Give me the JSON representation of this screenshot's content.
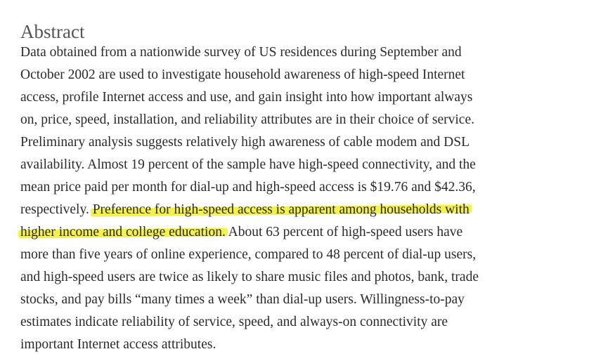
{
  "heading": "Abstract",
  "abstract_lines": [
    "Data obtained from a nationwide survey of US residences during September and",
    "October 2002 are used to investigate household awareness of high-speed Internet",
    "access, profile Internet access and use, and gain insight into how important always",
    "on, price, speed, installation, and reliability attributes are in their choice of service.",
    "Preliminary analysis suggests relatively high awareness of cable modem and DSL",
    "availability. Almost 19 percent of the sample have high-speed connectivity, and the",
    "mean price paid per month for dial-up and high-speed access is $19.76 and $42.36,",
    {
      "before": "respectively. ",
      "highlight": "Preference for high-speed access is apparent among households with",
      "after": ""
    },
    {
      "before": "",
      "highlight": "higher income and college education.",
      "after": " About 63 percent of high-speed users have"
    },
    "more than five years of online experience, compared to 48 percent of dial-up users,",
    "and high-speed users are twice as likely to share music files and photos, bank, trade",
    "stocks, and pay bills “many times a week” than dial-up users. Willingness-to-pay",
    "estimates indicate reliability of service, speed, and always-on connectivity are",
    "important Internet access attributes."
  ],
  "highlight_color": "#f4f24a"
}
